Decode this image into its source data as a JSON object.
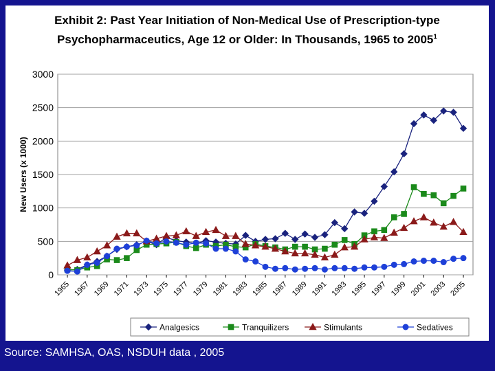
{
  "title": {
    "line1": "Exhibit 2: Past Year Initiation of Non-Medical Use of Prescription-type",
    "line2": "Psychopharmaceutics, Age 12 or Older: In Thousands, 1965 to 2005",
    "footnote_mark": "1"
  },
  "source": "Source:  SAMHSA, OAS, NSDUH data , 2005",
  "colors": {
    "background": "#14148f",
    "panel": "#ffffff"
  },
  "chart_data": {
    "type": "line",
    "ylabel": "New Users (x 1000)",
    "xlabel": "",
    "ylim": [
      0,
      3000
    ],
    "yticks": [
      0,
      500,
      1000,
      1500,
      2000,
      2500,
      3000
    ],
    "xticks": [
      "1965",
      "1967",
      "1969",
      "1971",
      "1973",
      "1975",
      "1977",
      "1979",
      "1981",
      "1983",
      "1985",
      "1987",
      "1989",
      "1991",
      "1993",
      "1995",
      "1997",
      "1999",
      "2001",
      "2003",
      "2005"
    ],
    "grid": "horizontal",
    "legend_position": "bottom",
    "x": [
      1965,
      1966,
      1967,
      1968,
      1969,
      1970,
      1971,
      1972,
      1973,
      1974,
      1975,
      1976,
      1977,
      1978,
      1979,
      1980,
      1981,
      1982,
      1983,
      1984,
      1985,
      1986,
      1987,
      1988,
      1989,
      1990,
      1991,
      1992,
      1993,
      1994,
      1995,
      1996,
      1997,
      1998,
      1999,
      2000,
      2001,
      2002,
      2003,
      2004,
      2005
    ],
    "series": [
      {
        "name": "Analgesics",
        "color": "#1a237e",
        "marker": "diamond",
        "values": [
          70,
          80,
          150,
          200,
          280,
          380,
          420,
          450,
          500,
          450,
          560,
          510,
          490,
          470,
          510,
          490,
          470,
          460,
          590,
          500,
          530,
          540,
          620,
          530,
          610,
          560,
          600,
          780,
          690,
          940,
          920,
          1100,
          1320,
          1540,
          1810,
          2260,
          2390,
          2310,
          2450,
          2430,
          2190
        ]
      },
      {
        "name": "Tranquilizers",
        "color": "#1b8a1b",
        "marker": "square",
        "values": [
          80,
          70,
          110,
          130,
          230,
          220,
          250,
          370,
          450,
          460,
          470,
          490,
          430,
          400,
          450,
          430,
          450,
          420,
          410,
          460,
          430,
          410,
          380,
          420,
          420,
          380,
          390,
          450,
          520,
          460,
          590,
          650,
          670,
          860,
          910,
          1310,
          1210,
          1190,
          1070,
          1180,
          1290
        ]
      },
      {
        "name": "Stimulants",
        "color": "#8b1a1a",
        "marker": "triangle",
        "values": [
          140,
          220,
          260,
          350,
          440,
          570,
          620,
          620,
          500,
          540,
          580,
          590,
          650,
          580,
          640,
          670,
          580,
          580,
          460,
          440,
          420,
          390,
          350,
          320,
          320,
          300,
          260,
          300,
          410,
          420,
          530,
          560,
          550,
          630,
          700,
          800,
          860,
          780,
          720,
          790,
          640
        ]
      },
      {
        "name": "Sedatives",
        "color": "#1e40d8",
        "marker": "circle",
        "values": [
          60,
          50,
          150,
          180,
          280,
          390,
          420,
          440,
          510,
          470,
          500,
          480,
          450,
          480,
          470,
          390,
          390,
          350,
          230,
          200,
          120,
          90,
          100,
          80,
          90,
          100,
          80,
          100,
          100,
          90,
          110,
          110,
          120,
          150,
          160,
          200,
          210,
          210,
          190,
          240,
          250
        ]
      }
    ]
  }
}
